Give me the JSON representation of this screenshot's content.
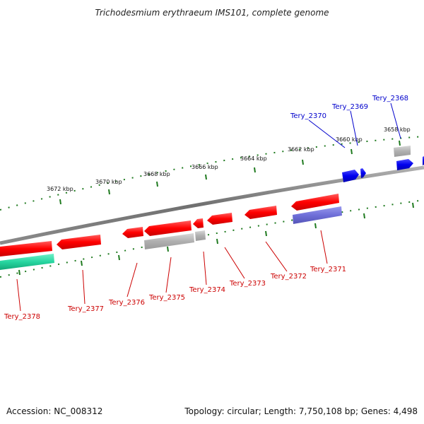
{
  "title": "Trichodesmium erythraeum IMS101, complete genome",
  "footer": {
    "accession": "Accession: NC_008312",
    "info": "Topology: circular; Length: 7,750,108 bp; Genes: 4,498"
  },
  "scale_labels": [
    "3672 kbp",
    "3670 kbp",
    "3668 kbp",
    "3666 kbp",
    "3664 kbp",
    "3662 kbp",
    "3660 kbp",
    "3658 kbp"
  ],
  "genes": {
    "reverse": [
      "Tery_2378",
      "Tery_2377",
      "Tery_2376",
      "Tery_2375",
      "Tery_2374",
      "Tery_2373",
      "Tery_2372",
      "Tery_2371"
    ],
    "forward": [
      "Tery_2370",
      "Tery_2369",
      "Tery_2368"
    ]
  },
  "colors": {
    "backbone": "#7f7f7f",
    "tick": "#1f7a1f",
    "cds_red": "#ff0000",
    "cds_gray": "#b5b5b5",
    "cds_blue": "#0000ee",
    "cds_purple": "#6f6fd8",
    "cds_teal": "#27d6a0",
    "label_red": "#cc0000",
    "label_blue": "#0000cc"
  }
}
